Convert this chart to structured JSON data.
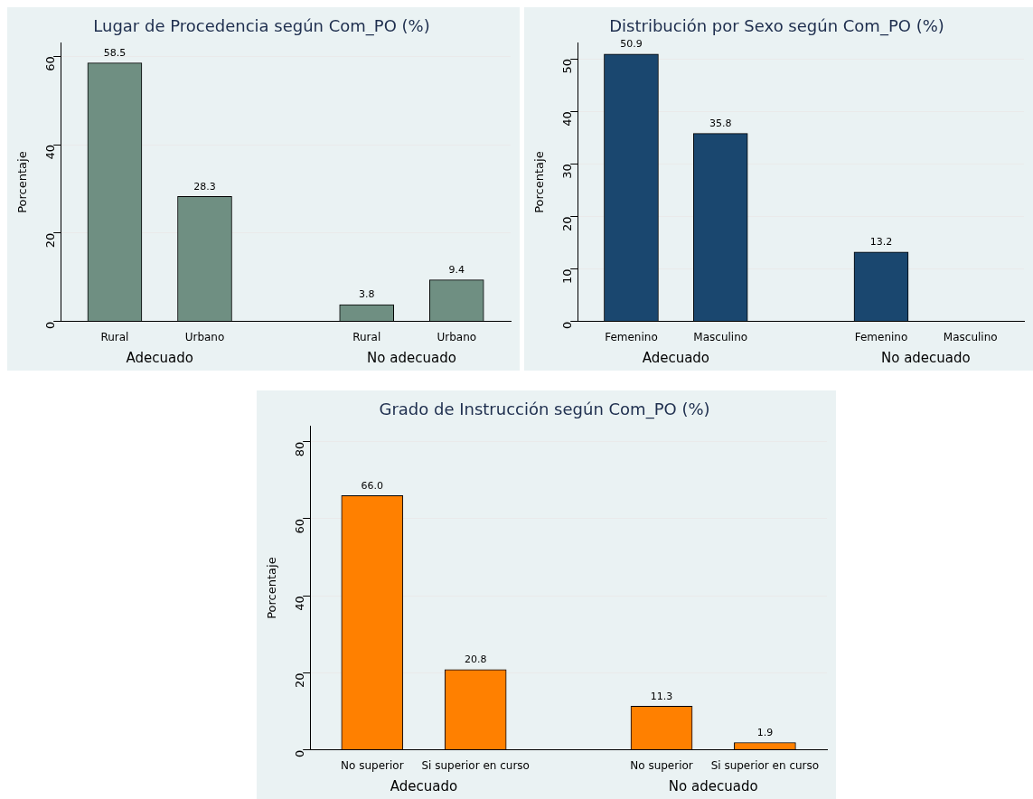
{
  "chart_data": [
    {
      "type": "bar",
      "title": "Lugar de Procedencia según Com_PO (%)",
      "ylabel": "Porcentaje",
      "categories": [
        "Rural",
        "Urbano",
        "Rural",
        "Urbano"
      ],
      "values": [
        58.5,
        28.3,
        3.8,
        9.4
      ],
      "value_labels": [
        "58.5",
        "28.3",
        "3.8",
        "9.4"
      ],
      "color": "#6f8f82",
      "ylim": [
        0,
        63
      ],
      "yticks": [
        0,
        20,
        40,
        60
      ],
      "grid": "y",
      "annotations": [
        "Adecuado",
        "No adecuado"
      ]
    },
    {
      "type": "bar",
      "title": "Distribución por Sexo según Com_PO (%)",
      "ylabel": "Porcentaje",
      "categories": [
        "Femenino",
        "Masculino",
        "Femenino",
        "Masculino"
      ],
      "values": [
        50.9,
        35.8,
        13.2,
        null
      ],
      "value_labels": [
        "50.9",
        "35.8",
        "13.2",
        null
      ],
      "color": "#1a476f",
      "ylim": [
        0,
        53
      ],
      "yticks": [
        0,
        10,
        20,
        30,
        40,
        50
      ],
      "grid": "y",
      "annotations": [
        "Adecuado",
        "No adecuado"
      ]
    },
    {
      "type": "bar",
      "title": "Grado de Instrucción según Com_PO (%)",
      "ylabel": "Porcentaje",
      "categories": [
        "No superior",
        "Si superior en curso",
        "No superior",
        "Si superior en curso"
      ],
      "values": [
        66.0,
        20.8,
        11.3,
        1.9
      ],
      "value_labels": [
        "66.0",
        "20.8",
        "11.3",
        "1.9"
      ],
      "color": "#ff8000",
      "ylim": [
        0,
        84
      ],
      "yticks": [
        0,
        20,
        40,
        60,
        80
      ],
      "grid": "y",
      "annotations": [
        "Adecuado",
        "No adecuado"
      ]
    }
  ]
}
